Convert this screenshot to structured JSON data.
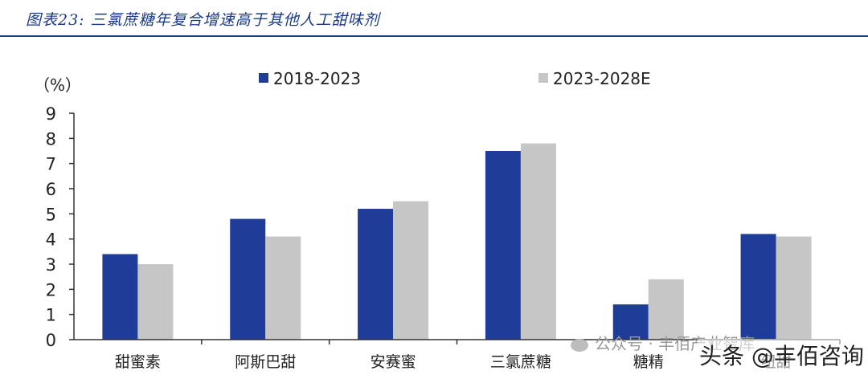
{
  "figure": {
    "title": "图表23:  三氯蔗糖年复合增速高于其他人工甜味剂"
  },
  "watermarks": {
    "wechat": "公众号 · 丰佰产业智库",
    "toutiao": "头条 @丰佰咨询"
  },
  "colors": {
    "series_1": "#1f3c99",
    "series_2": "#c6c6c6",
    "header_rule": "#1a3a8a"
  },
  "chart_data": {
    "type": "bar",
    "title": "",
    "xlabel": "",
    "ylabel": "（%）",
    "ylim": [
      0,
      9
    ],
    "yticks": [
      "0",
      "1",
      "2",
      "3",
      "4",
      "5",
      "6",
      "7",
      "8",
      "9"
    ],
    "categories": [
      "甜蜜素",
      "阿斯巴甜",
      "安赛蜜",
      "三氯蔗糖",
      "糖精",
      "纽甜"
    ],
    "series": [
      {
        "name": "2018-2023",
        "values": [
          3.4,
          4.8,
          5.2,
          7.5,
          1.4,
          4.2
        ]
      },
      {
        "name": "2023-2028E",
        "values": [
          3.0,
          4.1,
          5.5,
          7.8,
          2.4,
          4.1
        ]
      }
    ],
    "legend_position": "top",
    "grid": false
  }
}
